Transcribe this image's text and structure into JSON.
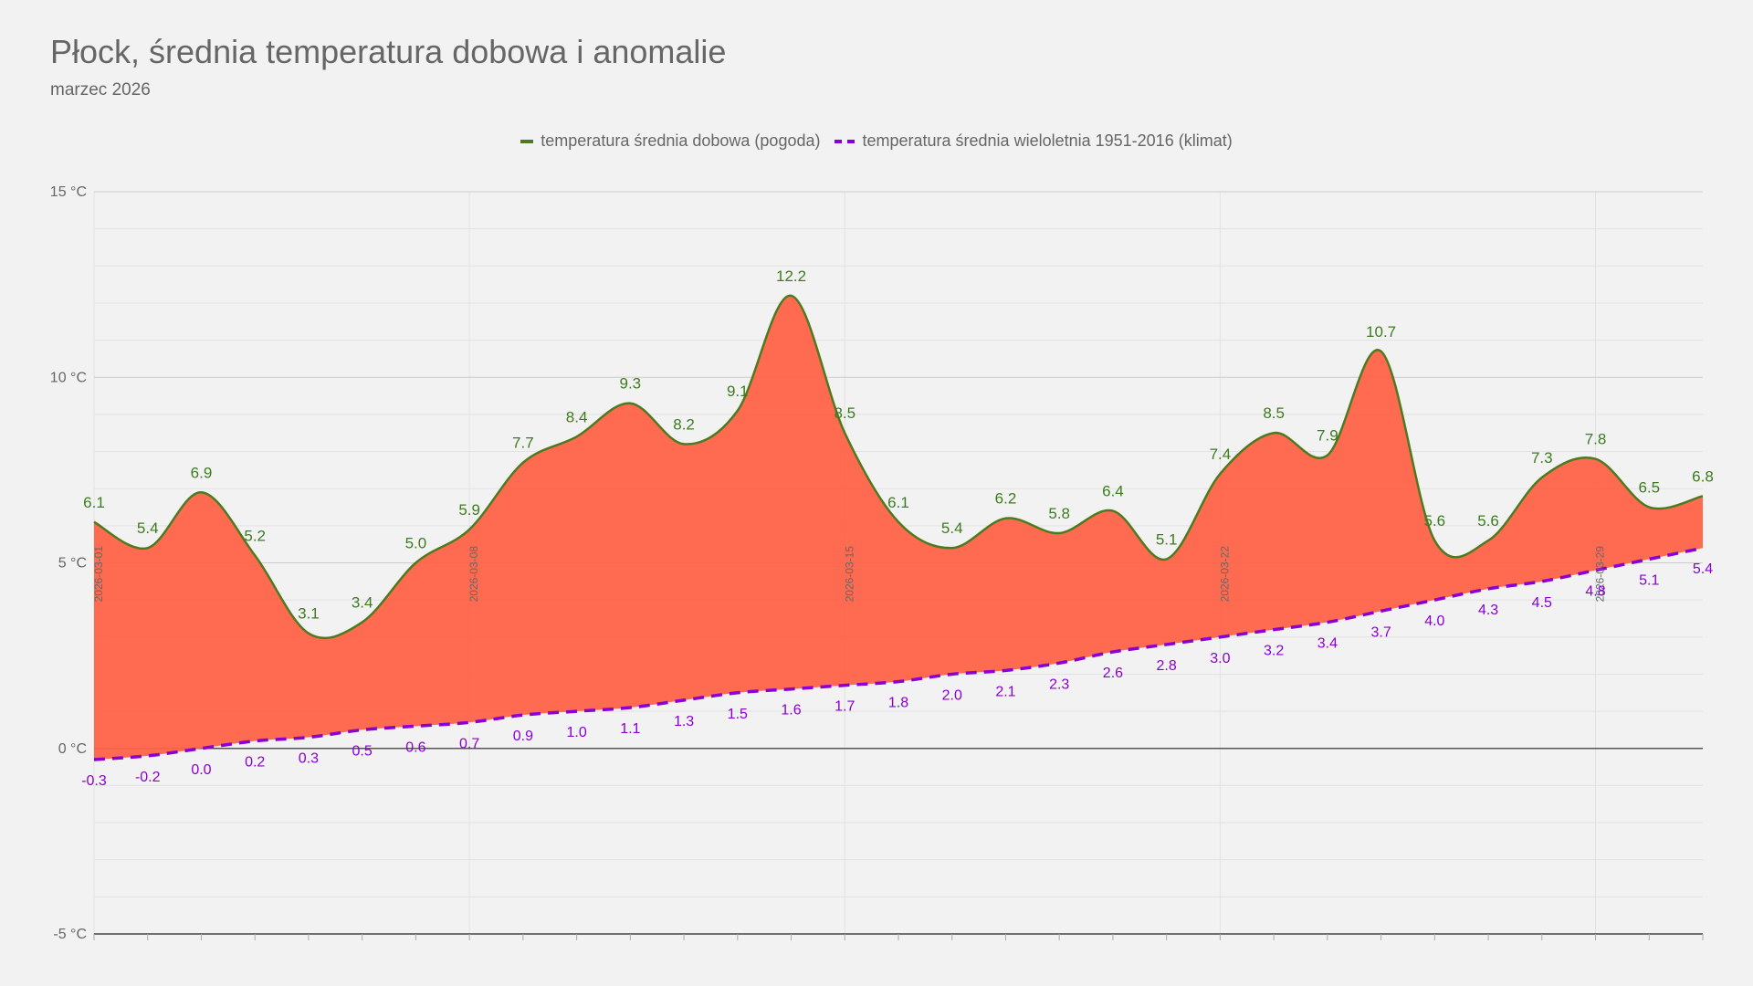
{
  "chart_data": {
    "type": "area",
    "title": "Płock, średnia temperatura dobowa i anomalie",
    "subtitle": "marzec 2026",
    "ylim": [
      -5,
      15
    ],
    "y_ticks": [
      "15 °C",
      "10 °C",
      "5 °C",
      "0 °C",
      "-5 °C"
    ],
    "y_tick_values": [
      15,
      10,
      5,
      0,
      -5
    ],
    "x": [
      "2026-03-01",
      "2026-03-02",
      "2026-03-03",
      "2026-03-04",
      "2026-03-05",
      "2026-03-06",
      "2026-03-07",
      "2026-03-08",
      "2026-03-09",
      "2026-03-10",
      "2026-03-11",
      "2026-03-12",
      "2026-03-13",
      "2026-03-14",
      "2026-03-15",
      "2026-03-16",
      "2026-03-17",
      "2026-03-18",
      "2026-03-19",
      "2026-03-20",
      "2026-03-21",
      "2026-03-22",
      "2026-03-23",
      "2026-03-24",
      "2026-03-25",
      "2026-03-26",
      "2026-03-27",
      "2026-03-28",
      "2026-03-29",
      "2026-03-30",
      "2026-03-31"
    ],
    "x_tick_labels": [
      "2026-03-01",
      "2026-03-08",
      "2026-03-15",
      "2026-03-22",
      "2026-03-29"
    ],
    "series": [
      {
        "name": "temperatura średnia dobowa (pogoda)",
        "color": "#4d7a1f",
        "style": "solid",
        "values": [
          6.1,
          5.4,
          6.9,
          5.2,
          3.1,
          3.4,
          5.0,
          5.9,
          7.7,
          8.4,
          9.3,
          8.2,
          9.1,
          12.2,
          8.5,
          6.1,
          5.4,
          6.2,
          5.8,
          6.4,
          5.1,
          7.4,
          8.5,
          7.9,
          10.7,
          5.6,
          5.6,
          7.3,
          7.8,
          6.5,
          6.8
        ]
      },
      {
        "name": "temperatura średnia wieloletnia 1951-2016 (klimat)",
        "color": "#8a00d4",
        "style": "dashed",
        "values": [
          -0.3,
          -0.2,
          0.0,
          0.2,
          0.3,
          0.5,
          0.6,
          0.7,
          0.9,
          1.0,
          1.1,
          1.3,
          1.5,
          1.6,
          1.7,
          1.8,
          2.0,
          2.1,
          2.3,
          2.6,
          2.8,
          3.0,
          3.2,
          3.4,
          3.7,
          4.0,
          4.3,
          4.5,
          4.8,
          5.1,
          5.4
        ]
      }
    ],
    "anomaly_fill_color": "#ff6347",
    "grid": true,
    "legend_position": "top-center"
  }
}
